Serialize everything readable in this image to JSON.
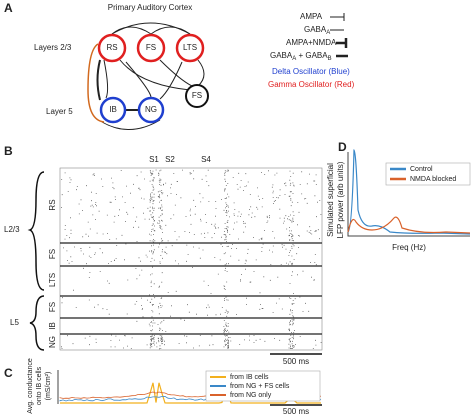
{
  "panel_a": {
    "letter": "A",
    "title": "Primary Auditory Cortex",
    "layer_upper": "Layers 2/3",
    "layer_lower": "Layer 5",
    "nodes": [
      "RS",
      "FS",
      "LTS",
      "IB",
      "NG",
      "FS"
    ],
    "synapses": [
      {
        "label": "AMPA"
      },
      {
        "label": "GABA",
        "sub": "A"
      },
      {
        "label": "AMPA+NMDA"
      },
      {
        "label": "GABA",
        "sub": "A",
        "label2": " + GABA",
        "sub2": "B"
      }
    ],
    "delta": "Delta Oscillator (Blue)",
    "gamma": "Gamma Oscillator (Red)"
  },
  "panel_b": {
    "letter": "B",
    "stimuli": [
      "S1",
      "S2",
      "S4"
    ],
    "group_upper": "L2/3",
    "group_lower": "L5",
    "rows": [
      "RS",
      "FS",
      "LTS",
      "FS",
      "IB",
      "NG"
    ],
    "scale": "500 ms"
  },
  "panel_c": {
    "letter": "C",
    "ylabel_1": "Avg. conductance",
    "ylabel_2": "onto IB cells",
    "ylabel_3": "(mS/cm²)",
    "legend": [
      "from IB cells",
      "from NG + FS cells",
      "from NG only"
    ],
    "scale": "500 ms"
  },
  "panel_d": {
    "letter": "D",
    "ylabel_1": "Simulated superficial",
    "ylabel_2": "LFP power (arb units)",
    "xlabel": "Freq (Hz)",
    "legend": [
      "Control",
      "NMDA blocked"
    ]
  }
}
